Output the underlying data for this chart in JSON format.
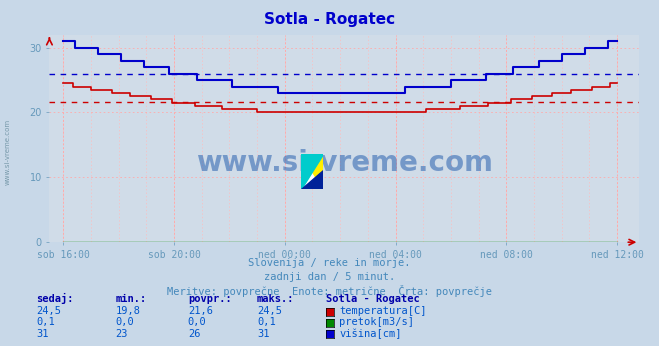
{
  "title": "Sotla - Rogatec",
  "title_color": "#0000cc",
  "fig_bg_color": "#c8d8e8",
  "plot_bg_color": "#d0dce8",
  "grid_color": "#ffaaaa",
  "tick_color": "#6699bb",
  "x_tick_labels": [
    "sob 16:00",
    "sob 20:00",
    "ned 00:00",
    "ned 04:00",
    "ned 08:00",
    "ned 12:00"
  ],
  "x_tick_pos": [
    0,
    4,
    8,
    12,
    16,
    20
  ],
  "ylim": [
    0,
    32
  ],
  "yticks": [
    0,
    10,
    20,
    30
  ],
  "temp_avg": 21.6,
  "height_avg": 26.0,
  "temp_color": "#cc0000",
  "height_color": "#0000cc",
  "flow_color": "#008800",
  "subtitle1": "Slovenija / reke in morje.",
  "subtitle2": "zadnji dan / 5 minut.",
  "subtitle3": "Meritve: povprečne  Enote: metrične  Črta: povprečje",
  "subtitle_color": "#4488bb",
  "watermark": "www.si-vreme.com",
  "watermark_color": "#1a55aa",
  "table_header_color": "#0000aa",
  "table_val_color": "#0055cc",
  "table_headers": [
    "sedaj:",
    "min.:",
    "povpr.:",
    "maks.:",
    "Sotla - Rogatec"
  ],
  "rows": [
    {
      "sedaj": "24,5",
      "min": "19,8",
      "povpr": "21,6",
      "maks": "24,5",
      "label": "temperatura[C]",
      "color": "#cc0000"
    },
    {
      "sedaj": "0,1",
      "min": "0,0",
      "povpr": "0,0",
      "maks": "0,1",
      "label": "pretok[m3/s]",
      "color": "#008800"
    },
    {
      "sedaj": "31",
      "min": "23",
      "povpr": "26",
      "maks": "31",
      "label": "višina[cm]",
      "color": "#0000cc"
    }
  ]
}
